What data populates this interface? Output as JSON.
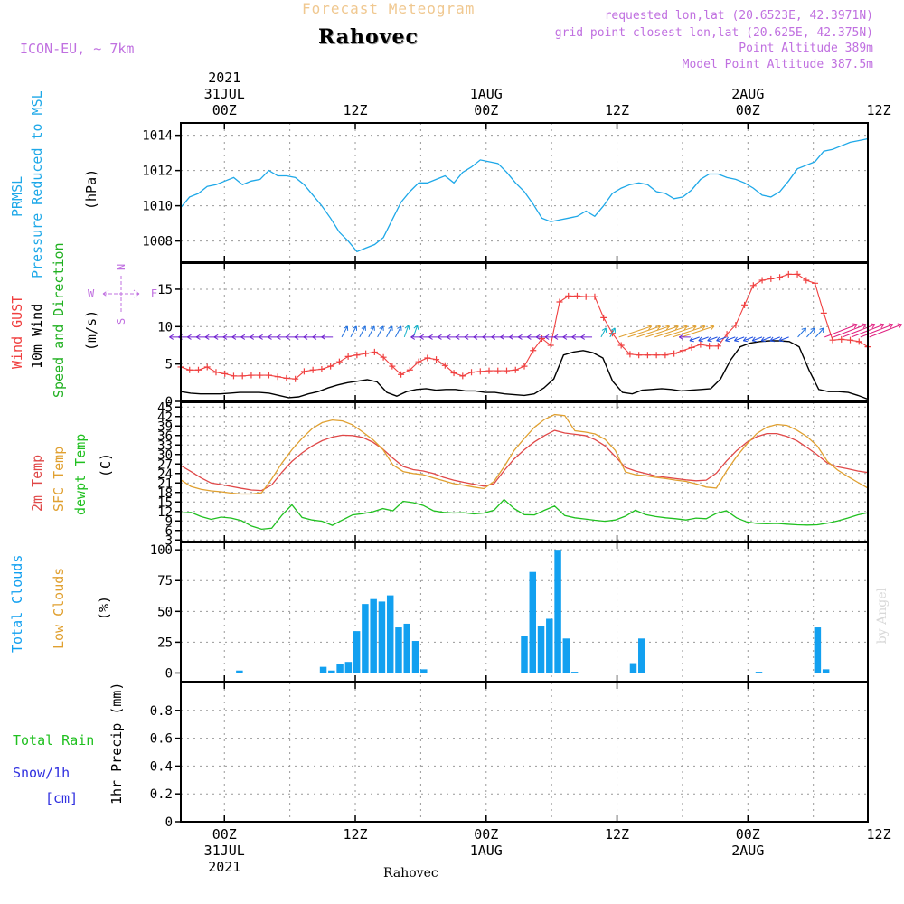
{
  "header": {
    "product_title": "Forecast Meteogram",
    "station": "Rahovec",
    "model": "ICON-EU, ~ 7km",
    "requested": "requested lon,lat (20.6523E, 42.3971N)",
    "grid_point": "grid point closest lon,lat (20.625E, 42.375N)",
    "point_altitude": "Point Altitude 389m",
    "model_altitude": "Model Point Altitude 387.5m",
    "credit": "by Angel",
    "bottom_station": "Rahovec"
  },
  "colors": {
    "header_title": "#f0c890",
    "purple": "#c070e0",
    "pressure": "#1ea8e8",
    "gust": "#f04040",
    "wind": "#000000",
    "wind_dir_label": "#20b020",
    "temp": "#e04848",
    "sfc_temp": "#e0a030",
    "dewpt": "#20c020",
    "clouds_total": "#12a0f0",
    "clouds_low": "#e0a030",
    "rain": "#20c020",
    "snow": "#3030e0",
    "credit": "#d8d8d8"
  },
  "chart_data": [
    {
      "type": "line",
      "panel": "pressure",
      "title": "PRMSL Pressure Reduced to MSL",
      "ylabel_lines": [
        "PRMSL",
        "Pressure Reduced to MSL"
      ],
      "unit": "(hPa)",
      "ylim": [
        1006.8,
        1014.7
      ],
      "yticks": [
        1008,
        1010,
        1012,
        1014
      ],
      "series": [
        {
          "name": "PRMSL",
          "values": [
            1009.9,
            1010.5,
            1010.7,
            1011.1,
            1011.2,
            1011.4,
            1011.6,
            1011.2,
            1011.4,
            1011.5,
            1012.0,
            1011.7,
            1011.7,
            1011.6,
            1011.2,
            1010.6,
            1010.0,
            1009.3,
            1008.5,
            1008.0,
            1007.4,
            1007.6,
            1007.8,
            1008.2,
            1009.2,
            1010.2,
            1010.8,
            1011.3,
            1011.3,
            1011.5,
            1011.7,
            1011.3,
            1011.9,
            1012.2,
            1012.6,
            1012.5,
            1012.4,
            1011.9,
            1011.3,
            1010.8,
            1010.1,
            1009.3,
            1009.1,
            1009.2,
            1009.3,
            1009.4,
            1009.7,
            1009.4,
            1010.0,
            1010.7,
            1011.0,
            1011.2,
            1011.3,
            1011.2,
            1010.8,
            1010.7,
            1010.4,
            1010.5,
            1010.9,
            1011.5,
            1011.8,
            1011.8,
            1011.6,
            1011.5,
            1011.3,
            1011.0,
            1010.6,
            1010.5,
            1010.8,
            1011.4,
            1012.1,
            1012.3,
            1012.5,
            1013.1,
            1013.2,
            1013.4,
            1013.6,
            1013.7,
            1013.8
          ]
        }
      ]
    },
    {
      "type": "line",
      "panel": "wind",
      "title": "Wind GUST, 10m Wind Speed and Direction",
      "ylabel_lines": [
        "Wind GUST",
        "10m Wind",
        "Speed and Direction"
      ],
      "unit": "(m/s)",
      "compass": {
        "n": "N",
        "s": "S",
        "e": "E",
        "w": "W"
      },
      "ylim": [
        0,
        18.5
      ],
      "yticks": [
        0,
        5,
        10,
        15
      ],
      "series": [
        {
          "name": "Wind GUST",
          "values": [
            4.6,
            4.2,
            4.2,
            4.6,
            3.9,
            3.7,
            3.4,
            3.4,
            3.5,
            3.5,
            3.5,
            3.3,
            3.1,
            3.0,
            4.0,
            4.2,
            4.3,
            4.7,
            5.3,
            6.0,
            6.2,
            6.4,
            6.6,
            5.9,
            4.7,
            3.6,
            4.2,
            5.3,
            5.8,
            5.6,
            4.8,
            3.8,
            3.4,
            3.9,
            4.0,
            4.1,
            4.1,
            4.1,
            4.2,
            4.7,
            6.8,
            8.4,
            7.5,
            13.3,
            14.1,
            14.1,
            14.0,
            14.0,
            11.2,
            9.1,
            7.5,
            6.3,
            6.2,
            6.2,
            6.2,
            6.2,
            6.4,
            6.8,
            7.2,
            7.6,
            7.4,
            7.4,
            9.0,
            10.2,
            12.9,
            15.5,
            16.2,
            16.4,
            16.6,
            17.0,
            17.0,
            16.2,
            15.8,
            11.8,
            8.2,
            8.3,
            8.2,
            8.0,
            7.3
          ]
        },
        {
          "name": "10m Wind",
          "values": [
            1.3,
            1.1,
            1.0,
            1.0,
            1.0,
            1.1,
            1.2,
            1.2,
            1.2,
            1.1,
            0.8,
            0.5,
            0.6,
            1.0,
            1.3,
            1.8,
            2.2,
            2.5,
            2.7,
            2.9,
            2.6,
            1.2,
            0.7,
            1.3,
            1.6,
            1.7,
            1.5,
            1.6,
            1.6,
            1.4,
            1.4,
            1.2,
            1.2,
            1.0,
            0.9,
            0.8,
            1.0,
            1.8,
            3.0,
            6.2,
            6.6,
            6.8,
            6.5,
            5.8,
            2.7,
            1.2,
            1.0,
            1.5,
            1.6,
            1.7,
            1.6,
            1.4,
            1.5,
            1.6,
            1.7,
            3.0,
            5.5,
            7.3,
            7.8,
            8.0,
            8.1,
            8.1,
            8.0,
            7.3,
            4.2,
            1.6,
            1.3,
            1.3,
            1.2,
            0.8,
            0.3
          ]
        }
      ]
    },
    {
      "type": "line",
      "panel": "temperature",
      "title": "2m Temp, SFC Temp, dewpt Temp",
      "ylabel_lines": [
        "2m Temp",
        "SFC Temp",
        "dewpt Temp"
      ],
      "unit": "(C)",
      "ylim": [
        2.5,
        46.5
      ],
      "yticks": [
        3,
        6,
        9,
        12,
        15,
        18,
        21,
        24,
        27,
        30,
        33,
        36,
        39,
        42,
        45
      ],
      "series": [
        {
          "name": "2m Temp",
          "values": [
            26.5,
            24.6,
            22.6,
            21.0,
            20.5,
            19.9,
            19.3,
            18.8,
            18.6,
            20.4,
            24.4,
            27.8,
            30.5,
            32.7,
            34.4,
            35.5,
            36.1,
            36.0,
            35.4,
            33.9,
            31.7,
            28.8,
            26.2,
            25.2,
            24.8,
            24.0,
            22.8,
            21.9,
            21.2,
            20.6,
            20.0,
            20.8,
            24.9,
            28.6,
            31.5,
            34.0,
            36.0,
            37.6,
            36.8,
            36.4,
            36.0,
            34.7,
            32.7,
            29.4,
            25.9,
            24.8,
            24.0,
            23.2,
            22.8,
            22.4,
            22.0,
            21.7,
            21.9,
            24.1,
            27.9,
            31.2,
            33.8,
            35.6,
            36.6,
            36.6,
            35.7,
            34.3,
            32.2,
            29.9,
            27.3,
            26.1,
            25.5,
            24.8,
            24.3
          ]
        },
        {
          "name": "SFC Temp",
          "values": [
            22.0,
            19.9,
            19.0,
            18.5,
            18.2,
            17.8,
            17.5,
            17.5,
            17.9,
            22.3,
            27.3,
            31.5,
            35.1,
            38.2,
            40.1,
            40.9,
            40.6,
            39.4,
            37.1,
            34.7,
            31.6,
            26.7,
            24.6,
            24.0,
            23.6,
            22.6,
            21.7,
            20.8,
            20.3,
            19.7,
            19.2,
            21.5,
            26.1,
            31.3,
            35.1,
            38.6,
            41.1,
            42.6,
            42.3,
            37.5,
            37.1,
            36.5,
            34.8,
            31.3,
            24.5,
            23.6,
            23.3,
            22.8,
            22.4,
            21.9,
            21.5,
            20.7,
            19.7,
            19.4,
            24.7,
            29.3,
            33.2,
            36.6,
            38.6,
            39.5,
            39.2,
            37.6,
            35.6,
            32.7,
            27.8,
            25.1,
            23.1,
            21.2,
            19.4
          ]
        },
        {
          "name": "dewpt Temp",
          "values": [
            11.5,
            11.7,
            10.4,
            9.5,
            10.2,
            9.9,
            9.1,
            7.4,
            6.4,
            6.7,
            10.8,
            14.1,
            10.1,
            9.3,
            8.9,
            7.6,
            9.3,
            10.9,
            11.3,
            11.9,
            12.9,
            12.2,
            15.2,
            14.8,
            13.9,
            12.2,
            11.7,
            11.5,
            11.6,
            11.2,
            11.5,
            12.4,
            15.8,
            12.9,
            11.0,
            10.9,
            12.4,
            13.7,
            10.7,
            10.0,
            9.6,
            9.2,
            8.9,
            9.3,
            10.5,
            12.4,
            11.0,
            10.4,
            10.0,
            9.7,
            9.3,
            9.9,
            9.7,
            11.4,
            12.2,
            10.0,
            8.7,
            8.2,
            8.1,
            8.2,
            8.0,
            7.8,
            7.7,
            7.8,
            8.3,
            9.0,
            9.9,
            10.9,
            11.6
          ]
        }
      ]
    },
    {
      "type": "bar",
      "panel": "clouds",
      "title": "Total Clouds, Low Clouds",
      "ylabel_lines": [
        "Total Clouds",
        "Low Clouds"
      ],
      "unit": "(%)",
      "ylim": [
        -7,
        106
      ],
      "yticks": [
        0,
        25,
        50,
        75,
        100
      ],
      "series": [
        {
          "name": "Total Clouds",
          "values": [
            0,
            0,
            0,
            0,
            0,
            0,
            0,
            2,
            0,
            0,
            0,
            0,
            0,
            0,
            0,
            0,
            0,
            5,
            2,
            7,
            9,
            34,
            56,
            60,
            58,
            63,
            37,
            40,
            26,
            3,
            0,
            0,
            0,
            0,
            0,
            0,
            0,
            0,
            0,
            0,
            0,
            30,
            82,
            38,
            44,
            100,
            28,
            1,
            0,
            0,
            0,
            0,
            0,
            0,
            8,
            28,
            0,
            0,
            0,
            0,
            0,
            0,
            0,
            0,
            0,
            0,
            0,
            0,
            0,
            1,
            0,
            0,
            0,
            0,
            0,
            0,
            37,
            3,
            0,
            0,
            0,
            0,
            0
          ]
        },
        {
          "name": "Low Clouds",
          "values": [
            0,
            0,
            0,
            0,
            0,
            0,
            0,
            0,
            0,
            0,
            0,
            0,
            0,
            0,
            0,
            0,
            0,
            0,
            0,
            0,
            0,
            0,
            0,
            0,
            0,
            0,
            0,
            0,
            0,
            0,
            0,
            0,
            0,
            0,
            0,
            0,
            0,
            0,
            0,
            0,
            0,
            0,
            0,
            0,
            0,
            0,
            0,
            0,
            0,
            0,
            0,
            0,
            0,
            0,
            0,
            0,
            0,
            0,
            0,
            0,
            0,
            0,
            0,
            0,
            0,
            0,
            0,
            0,
            0,
            0,
            0,
            0,
            0,
            0,
            0,
            0,
            0,
            0,
            0,
            0,
            0,
            0,
            0
          ]
        }
      ]
    },
    {
      "type": "bar",
      "panel": "precip",
      "title": "Total Rain, Snow/1h",
      "ylabel": "1hr Precip (mm)",
      "legend_rain": "Total Rain",
      "legend_snow_lines": [
        "Snow/1h",
        "[cm]"
      ],
      "ylim": [
        0,
        1.0
      ],
      "yticks": [
        0,
        0.2,
        0.4,
        0.6,
        0.8
      ],
      "series": [
        {
          "name": "Total Rain",
          "values": []
        },
        {
          "name": "Snow/1h",
          "values": []
        }
      ]
    }
  ],
  "time_axis": {
    "hours_range": [
      -4,
      59
    ],
    "top": [
      {
        "hour": 0,
        "lines": [
          "2021",
          "31JUL",
          "00Z"
        ]
      },
      {
        "hour": 12,
        "lines": [
          "12Z"
        ]
      },
      {
        "hour": 24,
        "lines": [
          "1AUG",
          "00Z"
        ]
      },
      {
        "hour": 36,
        "lines": [
          "12Z"
        ]
      },
      {
        "hour": 48,
        "lines": [
          "2AUG",
          "00Z"
        ]
      },
      {
        "hour": 60,
        "lines": [
          "12Z"
        ]
      }
    ],
    "bottom": [
      {
        "hour": 0,
        "lines": [
          "00Z",
          "31JUL",
          "2021"
        ]
      },
      {
        "hour": 12,
        "lines": [
          "12Z"
        ]
      },
      {
        "hour": 24,
        "lines": [
          "00Z",
          "1AUG"
        ]
      },
      {
        "hour": 36,
        "lines": [
          "12Z"
        ]
      },
      {
        "hour": 48,
        "lines": [
          "00Z",
          "2AUG"
        ]
      },
      {
        "hour": 60,
        "lines": [
          "12Z"
        ]
      }
    ]
  }
}
